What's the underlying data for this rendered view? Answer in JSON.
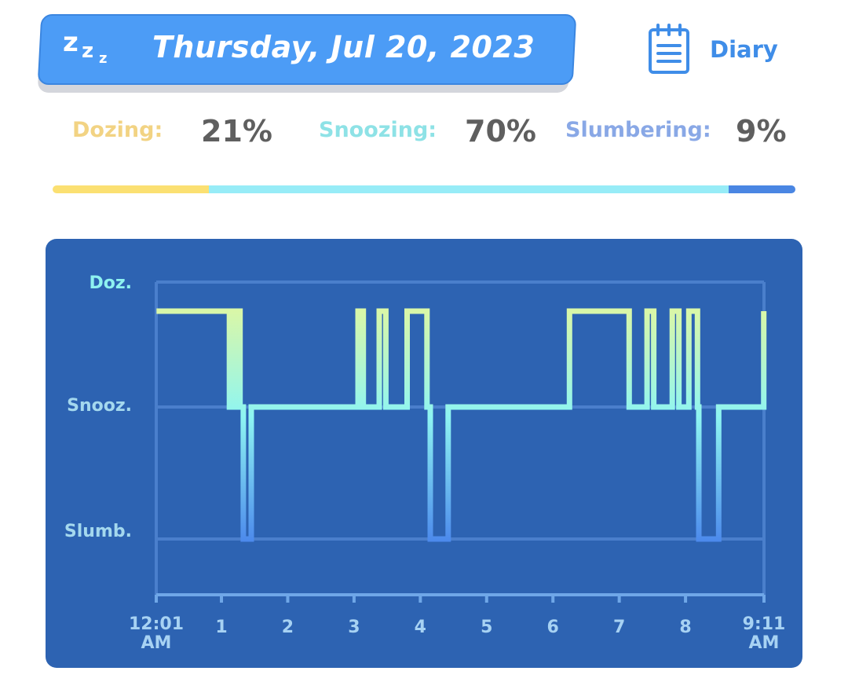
{
  "header": {
    "date": "Thursday, Jul 20, 2023",
    "zzz": [
      "z",
      "z",
      "z"
    ],
    "diary_label": "Diary",
    "banner_color": "#4c9cf6"
  },
  "stats": [
    {
      "label": "Dozing:",
      "value": "21%",
      "fraction": 0.21,
      "color": "#fbe072"
    },
    {
      "label": "Snoozing:",
      "value": "70%",
      "fraction": 0.7,
      "color": "#97ecf7"
    },
    {
      "label": "Slumbering:",
      "value": "9%",
      "fraction": 0.09,
      "color": "#4a86e3"
    }
  ],
  "chart_data": {
    "type": "line",
    "step": true,
    "y_categories": [
      "Slumb.",
      "Snooz.",
      "Doz."
    ],
    "x_ticks": [
      "12:01\nAM",
      "1",
      "2",
      "3",
      "4",
      "5",
      "6",
      "7",
      "8",
      "9:11\nAM"
    ],
    "x_range_hours": [
      0.0167,
      9.1833
    ],
    "series": [
      {
        "values": [
          [
            0.02,
            2
          ],
          [
            1.12,
            1
          ],
          [
            1.2,
            2
          ],
          [
            1.28,
            1
          ],
          [
            1.33,
            0
          ],
          [
            1.45,
            1
          ],
          [
            3.06,
            2
          ],
          [
            3.14,
            1
          ],
          [
            3.38,
            2
          ],
          [
            3.48,
            1
          ],
          [
            3.8,
            2
          ],
          [
            4.1,
            1
          ],
          [
            4.15,
            0
          ],
          [
            4.42,
            1
          ],
          [
            6.25,
            2
          ],
          [
            7.15,
            1
          ],
          [
            7.42,
            2
          ],
          [
            7.52,
            1
          ],
          [
            7.8,
            2
          ],
          [
            7.9,
            1
          ],
          [
            8.05,
            2
          ],
          [
            8.18,
            1
          ],
          [
            8.2,
            0
          ],
          [
            8.5,
            1
          ],
          [
            9.18,
            2
          ]
        ]
      }
    ],
    "grid": true,
    "colors": {
      "doz": "#d9f7a8",
      "snooz": "#8ef5f2",
      "slumb": "#4a86ec"
    }
  }
}
